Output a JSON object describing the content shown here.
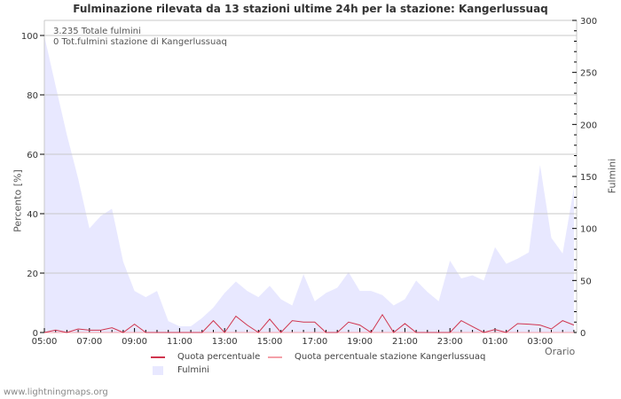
{
  "title": "Fulminazione rilevata da 13 stazioni ultime 24h per la stazione: Kangerlussuaq",
  "info": {
    "total": "3.235 Totale fulmini",
    "station_total": "0 Tot.fulmini stazione di Kangerlussuaq"
  },
  "axes": {
    "left_label": "Percento   [%]",
    "right_label": "Fulmini",
    "x_label": "Orario",
    "left_ticks": [
      "0",
      "20",
      "40",
      "60",
      "80",
      "100"
    ],
    "right_ticks": [
      "0",
      "50",
      "100",
      "150",
      "200",
      "250",
      "300"
    ],
    "x_ticks": [
      "05:00",
      "07:00",
      "09:00",
      "11:00",
      "13:00",
      "15:00",
      "17:00",
      "19:00",
      "21:00",
      "23:00",
      "01:00",
      "03:00"
    ]
  },
  "legend": {
    "item1": "Quota percentuale",
    "item2": "Quota percentuale stazione Kangerlussuaq",
    "item3": "Fulmini"
  },
  "colors": {
    "quota": "#d0364f",
    "quota_station": "#f4a0a8",
    "fulmini": "#e8e8ff",
    "grid": "#c8c8c8"
  },
  "footer": "www.lightningmaps.org",
  "chart_data": {
    "type": "area",
    "title": "Fulminazione rilevata da 13 stazioni ultime 24h per la stazione: Kangerlussuaq",
    "xlabel": "Orario",
    "ylabel": "Percento [%]",
    "y2label": "Fulmini",
    "ylim": [
      0,
      100
    ],
    "y2lim": [
      0,
      300
    ],
    "grid": true,
    "legend_position": "bottom",
    "x": [
      "05:00",
      "05:30",
      "06:00",
      "06:30",
      "07:00",
      "07:30",
      "08:00",
      "08:30",
      "09:00",
      "09:30",
      "10:00",
      "10:30",
      "11:00",
      "11:30",
      "12:00",
      "12:30",
      "13:00",
      "13:30",
      "14:00",
      "14:30",
      "15:00",
      "15:30",
      "16:00",
      "16:30",
      "17:00",
      "17:30",
      "18:00",
      "18:30",
      "19:00",
      "19:30",
      "20:00",
      "20:30",
      "21:00",
      "21:30",
      "22:00",
      "22:30",
      "23:00",
      "23:30",
      "00:00",
      "00:30",
      "01:00",
      "01:30",
      "02:00",
      "02:30",
      "03:00",
      "03:30",
      "04:00",
      "04:30"
    ],
    "series": [
      {
        "name": "Fulmini",
        "axis": "right",
        "type": "area",
        "values": [
          285,
          237,
          190,
          148,
          100,
          112,
          119,
          68,
          40,
          34,
          40,
          11,
          6,
          6,
          14,
          24,
          38,
          49,
          40,
          34,
          45,
          32,
          26,
          56,
          30,
          38,
          43,
          58,
          40,
          40,
          36,
          26,
          32,
          50,
          39,
          30,
          69,
          52,
          55,
          50,
          82,
          66,
          71,
          77,
          161,
          91,
          76,
          139
        ]
      },
      {
        "name": "Quota percentuale",
        "axis": "left",
        "type": "line",
        "values": [
          0,
          0.8,
          0,
          1.2,
          0.8,
          0.8,
          1.6,
          0,
          2.8,
          0,
          0,
          0,
          0,
          0,
          0,
          4,
          0,
          5.5,
          2.5,
          0,
          4.5,
          0,
          4,
          3.5,
          3.5,
          0,
          0,
          3.5,
          2.5,
          0,
          6,
          0,
          3,
          0,
          0,
          0,
          0,
          4,
          2,
          0,
          1,
          0,
          3,
          2.8,
          2.5,
          1.2,
          4,
          2.5
        ]
      },
      {
        "name": "Quota percentuale stazione Kangerlussuaq",
        "axis": "left",
        "type": "line",
        "values": [
          0,
          0,
          0,
          0,
          0,
          0,
          0,
          0,
          0,
          0,
          0,
          0,
          0,
          0,
          0,
          0,
          0,
          0,
          0,
          0,
          0,
          0,
          0,
          0,
          0,
          0,
          0,
          0,
          0,
          0,
          0,
          0,
          0,
          0,
          0,
          0,
          0,
          0,
          0,
          0,
          0,
          0,
          0,
          0,
          0,
          0,
          0,
          0
        ]
      }
    ],
    "annotations": [
      "3.235 Totale fulmini",
      "0 Tot.fulmini stazione di Kangerlussuaq"
    ]
  }
}
